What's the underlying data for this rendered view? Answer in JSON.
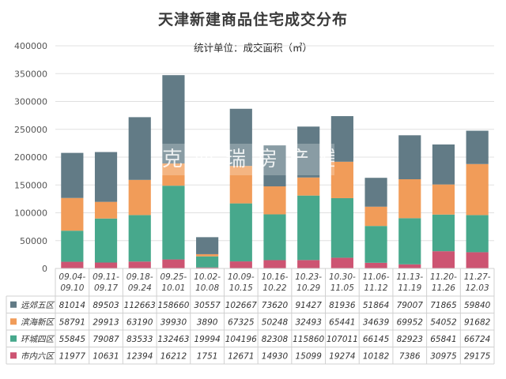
{
  "title": "天津新建商品住宅成交分布",
  "subtitle": "统计单位：成交面积（㎡）",
  "watermark": "克而瑞房产信息",
  "colors": {
    "远郊五区": "#627b86",
    "滨海新区": "#f19c59",
    "环城四区": "#47a88c",
    "市内六区": "#cd5472",
    "grid": "#e0e0e0"
  },
  "chart_data": {
    "type": "bar",
    "stacked": true,
    "title": "天津新建商品住宅成交分布",
    "subtitle": "统计单位：成交面积（㎡）",
    "ylim": [
      0,
      400000
    ],
    "yticks": [
      0,
      50000,
      100000,
      150000,
      200000,
      250000,
      300000,
      350000,
      400000
    ],
    "categories": [
      [
        "09.04-",
        "09.10"
      ],
      [
        "09.11-",
        "09.17"
      ],
      [
        "09.18-",
        "09.24"
      ],
      [
        "09.25-",
        "10.01"
      ],
      [
        "10.02-",
        "10.08"
      ],
      [
        "10.09-",
        "10.15"
      ],
      [
        "10.16-",
        "10.22"
      ],
      [
        "10.23-",
        "10.29"
      ],
      [
        "10.30-",
        "11.05"
      ],
      [
        "11.06-",
        "11.12"
      ],
      [
        "11.13-",
        "11.19"
      ],
      [
        "11.20-",
        "11.26"
      ],
      [
        "11.27-",
        "12.03"
      ]
    ],
    "series": [
      {
        "name": "市内六区",
        "values": [
          11977,
          10631,
          12394,
          16212,
          1751,
          12671,
          14930,
          15099,
          19274,
          10182,
          7386,
          30975,
          29175
        ]
      },
      {
        "name": "环城四区",
        "values": [
          55845,
          79087,
          83533,
          132463,
          19994,
          104196,
          82308,
          115860,
          107011,
          66145,
          82923,
          65841,
          66724
        ]
      },
      {
        "name": "滨海新区",
        "values": [
          58791,
          29913,
          63190,
          39930,
          3890,
          67325,
          50248,
          32493,
          65441,
          34639,
          69952,
          54052,
          91682
        ]
      },
      {
        "name": "远郊五区",
        "values": [
          81014,
          89503,
          112663,
          158660,
          30557,
          102667,
          73620,
          91427,
          81936,
          51864,
          79007,
          71865,
          59840
        ]
      }
    ],
    "table_rows": [
      "远郊五区",
      "滨海新区",
      "环城四区",
      "市内六区"
    ],
    "grid": true,
    "legend": "data-table-left"
  }
}
